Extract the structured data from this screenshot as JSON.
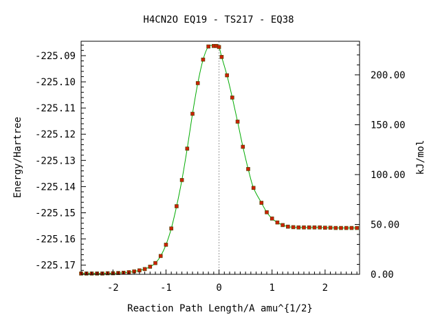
{
  "chart_data": {
    "type": "line",
    "title": "H4CN2O   EQ19 - TS217 - EQ38",
    "xlabel": "Reaction Path Length/A amu^{1/2}",
    "ylabel": "Energy/Hartree",
    "y2label": "kJ/mol",
    "xlim": [
      -2.6,
      2.65
    ],
    "ylim": [
      -225.1735,
      -225.0845
    ],
    "y2lim": [
      0,
      233.7
    ],
    "x_ticks": [
      -2,
      -1,
      0,
      1,
      2
    ],
    "x_tick_labels": [
      "-2",
      "-1",
      "0",
      "1",
      "2"
    ],
    "y_ticks": [
      -225.17,
      -225.16,
      -225.15,
      -225.14,
      -225.13,
      -225.12,
      -225.11,
      -225.1,
      -225.09
    ],
    "y_tick_labels": [
      "-225.17",
      "-225.16",
      "-225.15",
      "-225.14",
      "-225.13",
      "-225.12",
      "-225.11",
      "-225.10",
      "-225.09"
    ],
    "y2_ticks": [
      0,
      50,
      100,
      150,
      200
    ],
    "y2_tick_labels": [
      "0.00",
      "50.00",
      "100.00",
      "150.00",
      "200.00"
    ],
    "ts_marker_x": 0.0,
    "grid": false,
    "colors": {
      "curve": "#00aa00",
      "points": "#cc2200",
      "point_edge": "#444400",
      "ts_line": "#999999"
    },
    "series": [
      {
        "x": [
          -2.6,
          -2.5,
          -2.4,
          -2.3,
          -2.2,
          -2.1,
          -2.0,
          -1.9,
          -1.8,
          -1.7,
          -1.6,
          -1.5,
          -1.4,
          -1.3,
          -1.2,
          -1.1,
          -1.0,
          -0.9,
          -0.8,
          -0.7,
          -0.6,
          -0.5,
          -0.4,
          -0.3,
          -0.2,
          -0.1,
          -0.05,
          0.0,
          0.05,
          0.15,
          0.25,
          0.35,
          0.45,
          0.55,
          0.65,
          0.8,
          0.9,
          1.0,
          1.1,
          1.2,
          1.3,
          1.4,
          1.5,
          1.6,
          1.7,
          1.8,
          1.9,
          2.0,
          2.1,
          2.2,
          2.3,
          2.4,
          2.5,
          2.6
        ],
        "y": [
          -225.1732,
          -225.1732,
          -225.1732,
          -225.1732,
          -225.1732,
          -225.1731,
          -225.1731,
          -225.173,
          -225.1729,
          -225.1727,
          -225.1724,
          -225.172,
          -225.1715,
          -225.1706,
          -225.1692,
          -225.1665,
          -225.1622,
          -225.156,
          -225.1475,
          -225.1375,
          -225.1255,
          -225.1122,
          -225.1005,
          -225.0915,
          -225.0865,
          -225.0863,
          -225.0863,
          -225.0867,
          -225.0905,
          -225.0975,
          -225.106,
          -225.1152,
          -225.1248,
          -225.1333,
          -225.1405,
          -225.1462,
          -225.1498,
          -225.1522,
          -225.1537,
          -225.1547,
          -225.1553,
          -225.1555,
          -225.1556,
          -225.1556,
          -225.1556,
          -225.1556,
          -225.1556,
          -225.1557,
          -225.1557,
          -225.1558,
          -225.1558,
          -225.1558,
          -225.1558,
          -225.1558
        ]
      }
    ]
  }
}
